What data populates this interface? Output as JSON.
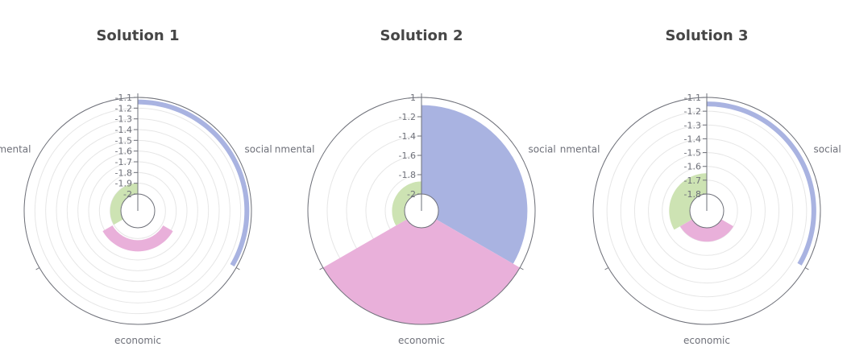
{
  "colors": {
    "social": "#a9b3e1",
    "environmental": "#cde3b3",
    "economic": "#e9b0da"
  },
  "chart_data": [
    {
      "type": "polar-bar",
      "title": "Solution 1",
      "angle_labels": [
        "social",
        "economic",
        "nmental"
      ],
      "radius_ticks": [
        "-1.1",
        "-1.2",
        "-1.3",
        "-1.4",
        "-1.5",
        "-1.6",
        "-1.7",
        "-1.8",
        "-1.9",
        "-2"
      ],
      "radius_range": [
        -2,
        -1.1
      ],
      "series": [
        {
          "category": "social",
          "value": -1.12
        },
        {
          "category": "economic",
          "value": -1.78
        },
        {
          "category": "environmental",
          "value": -1.9
        }
      ]
    },
    {
      "type": "polar-bar",
      "title": "Solution 2",
      "angle_labels": [
        "social",
        "economic",
        "nmental"
      ],
      "radius_ticks": [
        "-1",
        "-1.2",
        "-1.4",
        "-1.6",
        "-1.8",
        "-2"
      ],
      "radius_range": [
        -2,
        -1
      ],
      "series": [
        {
          "category": "social",
          "value": -1.08
        },
        {
          "category": "economic",
          "value": -1.0
        },
        {
          "category": "environmental",
          "value": -1.87
        }
      ]
    },
    {
      "type": "polar-bar",
      "title": "Solution 3",
      "angle_labels": [
        "social",
        "economic",
        "nmental"
      ],
      "radius_ticks": [
        "-1.1",
        "-1.2",
        "-1.3",
        "-1.4",
        "-1.5",
        "-1.6",
        "-1.7",
        "-1.8"
      ],
      "radius_range": [
        -1.8,
        -1.1
      ],
      "series": [
        {
          "category": "social",
          "value": -1.13
        },
        {
          "category": "economic",
          "value": -1.7
        },
        {
          "category": "environmental",
          "value": -1.65
        }
      ]
    }
  ]
}
